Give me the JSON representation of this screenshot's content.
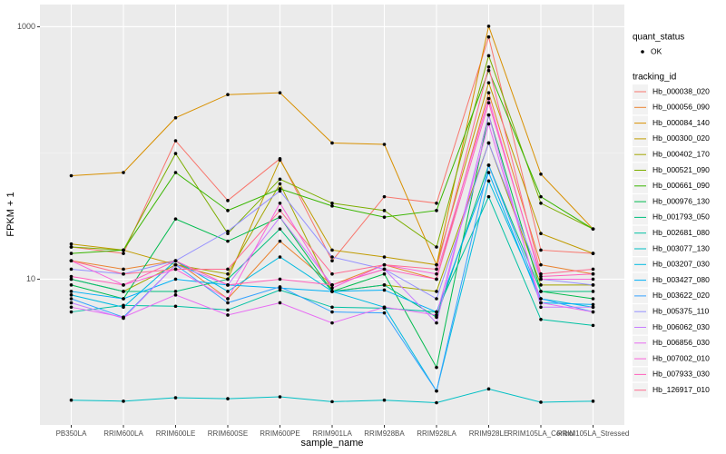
{
  "chart_data": {
    "type": "line",
    "log_y": true,
    "grid": true,
    "x_label": "sample_name",
    "y_label": "FPKM + 1",
    "categories": [
      "PB350LA",
      "RRIM600LA",
      "RRIM600LE",
      "RRIM600SE",
      "RRIM600PE",
      "RRIM901LA",
      "RRIM928BA",
      "RRIM928LA",
      "RRIM928LE",
      "RRIM105LA_Control",
      "RRIM105LA_Stressed"
    ],
    "ylim": [
      0.7,
      1500
    ],
    "yticks": [
      10,
      1000
    ],
    "point_legend": {
      "title": "quant_status",
      "label": "OK",
      "color": "#000000"
    },
    "legend_title": "tracking_id",
    "series": [
      {
        "name": "Hb_000038_020",
        "color": "#F8766D",
        "values": [
          18,
          16,
          125,
          42,
          90,
          14,
          45,
          40,
          830,
          17,
          16
        ]
      },
      {
        "name": "Hb_000056_090",
        "color": "#EA8331",
        "values": [
          14,
          12,
          14,
          7,
          20,
          9,
          13,
          10,
          300,
          13,
          11
        ]
      },
      {
        "name": "Hb_000084_140",
        "color": "#D89000",
        "values": [
          66,
          70,
          190,
          290,
          300,
          120,
          117,
          13,
          1010,
          68,
          25
        ]
      },
      {
        "name": "Hb_000300_020",
        "color": "#C09B00",
        "values": [
          19,
          17,
          13,
          10,
          88,
          17,
          15,
          13,
          360,
          23,
          16
        ]
      },
      {
        "name": "Hb_000402_170",
        "color": "#A3A500",
        "values": [
          10,
          8,
          13,
          11,
          57,
          8,
          9,
          8,
          120,
          9,
          9
        ]
      },
      {
        "name": "Hb_000521_090",
        "color": "#7CAE00",
        "values": [
          18,
          17,
          99,
          23,
          62,
          40,
          35,
          18,
          590,
          40,
          25
        ]
      },
      {
        "name": "Hb_000661_090",
        "color": "#39B600",
        "values": [
          16,
          17,
          70,
          35,
          52,
          38,
          31,
          35,
          450,
          45,
          25
        ]
      },
      {
        "name": "Hb_000976_130",
        "color": "#00BB4E",
        "values": [
          9,
          7,
          30,
          20,
          31,
          8,
          11,
          2,
          200,
          8,
          7
        ]
      },
      {
        "name": "Hb_001793_050",
        "color": "#00BF7D",
        "values": [
          10,
          8,
          8,
          10,
          25,
          8,
          9,
          5,
          80,
          8,
          8
        ]
      },
      {
        "name": "Hb_002681_080",
        "color": "#00C1A3",
        "values": [
          5.5,
          6.2,
          6.1,
          5.7,
          8.2,
          6,
          5.9,
          5.5,
          45,
          4.8,
          4.3
        ]
      },
      {
        "name": "Hb_003077_130",
        "color": "#00BFC4",
        "values": [
          1.1,
          1.08,
          1.15,
          1.13,
          1.17,
          1.07,
          1.1,
          1.05,
          1.35,
          1.06,
          1.08
        ]
      },
      {
        "name": "Hb_003207_030",
        "color": "#00BAE0",
        "values": [
          7.5,
          6,
          14,
          8,
          15,
          8,
          6,
          1.3,
          60,
          7,
          6
        ]
      },
      {
        "name": "Hb_003427_080",
        "color": "#00B0F6",
        "values": [
          8,
          7,
          10,
          9,
          8.5,
          8,
          8.2,
          5.5,
          70,
          6.5,
          6.3
        ]
      },
      {
        "name": "Hb_003622_020",
        "color": "#35A2FF",
        "values": [
          7,
          5,
          13,
          6.5,
          8.7,
          5.5,
          5.4,
          1.3,
          80,
          7,
          5.5
        ]
      },
      {
        "name": "Hb_005375_110",
        "color": "#9590FF",
        "values": [
          12,
          11,
          14,
          24,
          50,
          15,
          12,
          7,
          120,
          10,
          9
        ]
      },
      {
        "name": "Hb_006062_030",
        "color": "#C77CFF",
        "values": [
          6.5,
          4.9,
          13,
          9,
          31,
          9,
          12,
          4.5,
          200,
          6,
          6
        ]
      },
      {
        "name": "Hb_006856_030",
        "color": "#E76BF3",
        "values": [
          6,
          5,
          7.5,
          5.2,
          6.5,
          4.5,
          6,
          5.2,
          170,
          6.5,
          5.5
        ]
      },
      {
        "name": "Hb_007002_010",
        "color": "#FA62DB",
        "values": [
          14,
          9,
          12,
          7,
          40,
          8.5,
          13,
          11,
          270,
          10,
          10
        ]
      },
      {
        "name": "Hb_007933_030",
        "color": "#FF62BC",
        "values": [
          10.5,
          9,
          14,
          9,
          10,
          9,
          12,
          10,
          250,
          10.5,
          11
        ]
      },
      {
        "name": "Hb_126917_010",
        "color": "#FF6C91",
        "values": [
          14,
          11,
          12,
          12,
          35,
          11,
          13,
          12,
          480,
          11,
          12
        ]
      }
    ]
  }
}
